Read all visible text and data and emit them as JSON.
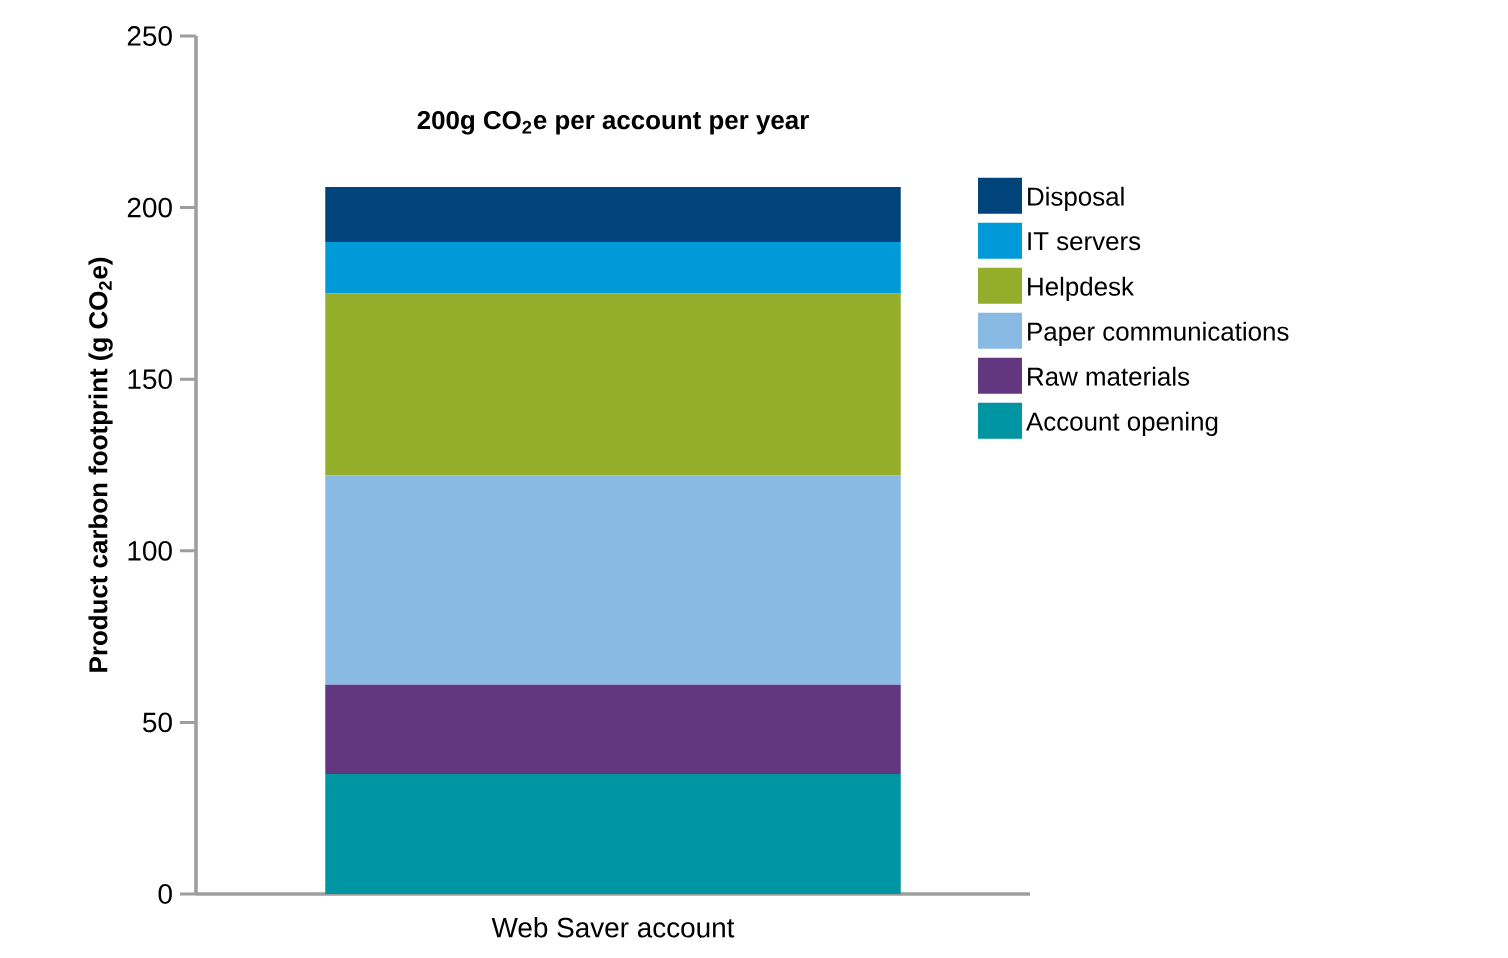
{
  "chart_data": {
    "type": "bar",
    "stacked": true,
    "title": "200g CO$_{2}$e per account per year",
    "ylabel": "Product carbon footprint (g CO$_{2}$e)",
    "categories": [
      "Web Saver account"
    ],
    "series": [
      {
        "name": "Account opening",
        "color": "#0095a3",
        "values": [
          35
        ]
      },
      {
        "name": "Raw materials",
        "color": "#633780",
        "values": [
          26
        ]
      },
      {
        "name": "Paper communications",
        "color": "#88bae4",
        "values": [
          61
        ]
      },
      {
        "name": "Helpdesk",
        "color": "#94ae2b",
        "values": [
          53
        ]
      },
      {
        "name": "IT servers",
        "color": "#009ad9",
        "values": [
          15
        ]
      },
      {
        "name": "Disposal",
        "color": "#00447c",
        "values": [
          16
        ]
      }
    ],
    "ylim": [
      0,
      250
    ],
    "yticks": [
      0,
      50,
      100,
      150,
      200,
      250
    ],
    "legend": "right",
    "grid": false
  }
}
